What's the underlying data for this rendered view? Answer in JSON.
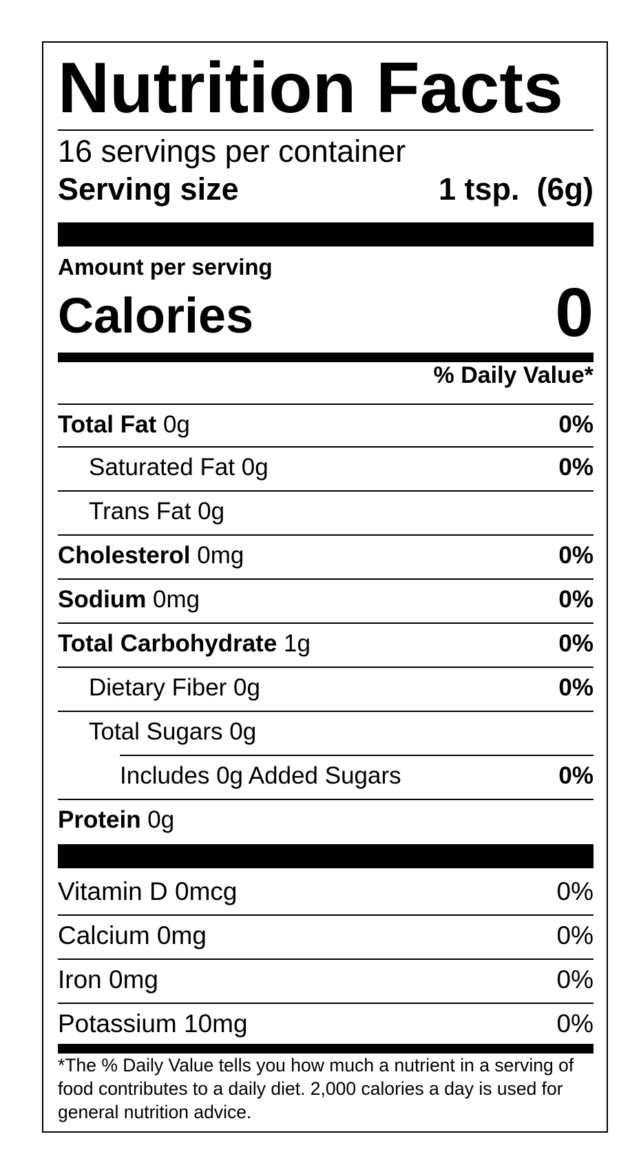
{
  "title": "Nutrition Facts",
  "servings_per_container": "16 servings per container",
  "serving_size": {
    "label": "Serving size",
    "value": "1 tsp.  (6g)"
  },
  "amount_per_serving": "Amount per serving",
  "calories": {
    "label": "Calories",
    "value": "0"
  },
  "daily_value_header": "% Daily Value*",
  "nutrients": [
    {
      "name": "Total Fat",
      "amount": " 0g",
      "dv": "0%"
    },
    {
      "name": "Saturated Fat 0g",
      "amount": "",
      "dv": "0%"
    },
    {
      "name": "Trans Fat 0g",
      "amount": "",
      "dv": ""
    },
    {
      "name": "Cholesterol",
      "amount": " 0mg",
      "dv": "0%"
    },
    {
      "name": "Sodium",
      "amount": " 0mg",
      "dv": "0%"
    },
    {
      "name": "Total Carbohydrate",
      "amount": " 1g",
      "dv": "0%"
    },
    {
      "name": "Dietary Fiber 0g",
      "amount": "",
      "dv": "0%"
    },
    {
      "name": "Total Sugars 0g",
      "amount": "",
      "dv": ""
    },
    {
      "name": "Includes 0g Added Sugars",
      "amount": "",
      "dv": "0%"
    },
    {
      "name": "Protein",
      "amount": " 0g",
      "dv": ""
    }
  ],
  "vitamins": [
    {
      "name": "Vitamin D 0mcg",
      "dv": "0%"
    },
    {
      "name": "Calcium 0mg",
      "dv": "0%"
    },
    {
      "name": "Iron 0mg",
      "dv": "0%"
    },
    {
      "name": "Potassium 10mg",
      "dv": "0%"
    }
  ],
  "footnote": "*The % Daily Value tells you how much a nutrient in a serving of food contributes to a daily diet. 2,000 calories a day is used for general nutrition advice."
}
